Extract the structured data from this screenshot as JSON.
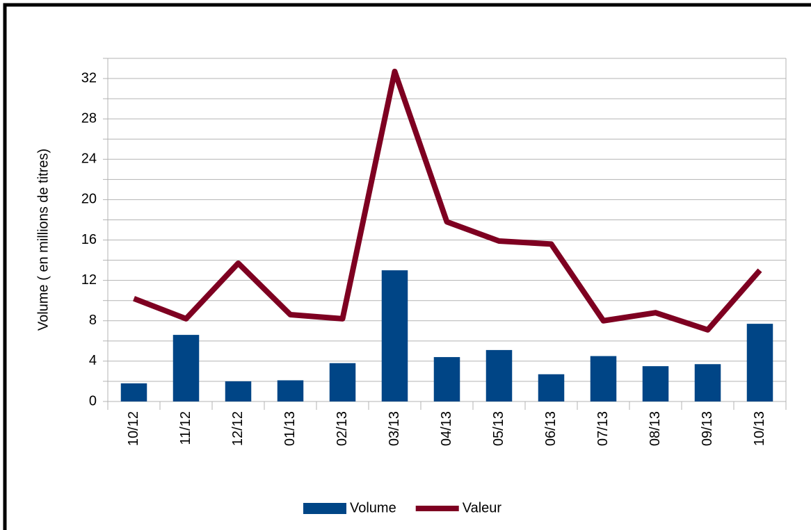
{
  "chart_data": {
    "type": "bar-line",
    "y_axis_label": "Volume ( en millions de titres)",
    "categories": [
      "10/12",
      "11/12",
      "12/12",
      "01/13",
      "02/13",
      "03/13",
      "04/13",
      "05/13",
      "06/13",
      "07/13",
      "08/13",
      "09/13",
      "10/13"
    ],
    "series": [
      {
        "name": "Volume",
        "type": "bar",
        "color": "#004586",
        "values": [
          1.8,
          6.6,
          2.0,
          2.1,
          3.8,
          13.0,
          4.4,
          5.1,
          2.7,
          4.5,
          3.5,
          3.7,
          7.7
        ]
      },
      {
        "name": "Valeur",
        "type": "line",
        "color": "#7e0021",
        "values": [
          10.2,
          8.2,
          13.7,
          8.6,
          8.2,
          32.7,
          17.8,
          15.9,
          15.6,
          8.0,
          8.8,
          7.1,
          13.0
        ]
      }
    ],
    "ylim": [
      0,
      34
    ],
    "yticks": [
      0,
      4,
      8,
      12,
      16,
      20,
      24,
      28,
      32
    ],
    "minor_yticks": [
      2,
      6,
      10,
      14,
      18,
      22,
      26,
      30,
      34
    ],
    "grid": true,
    "legend": "bottom"
  }
}
